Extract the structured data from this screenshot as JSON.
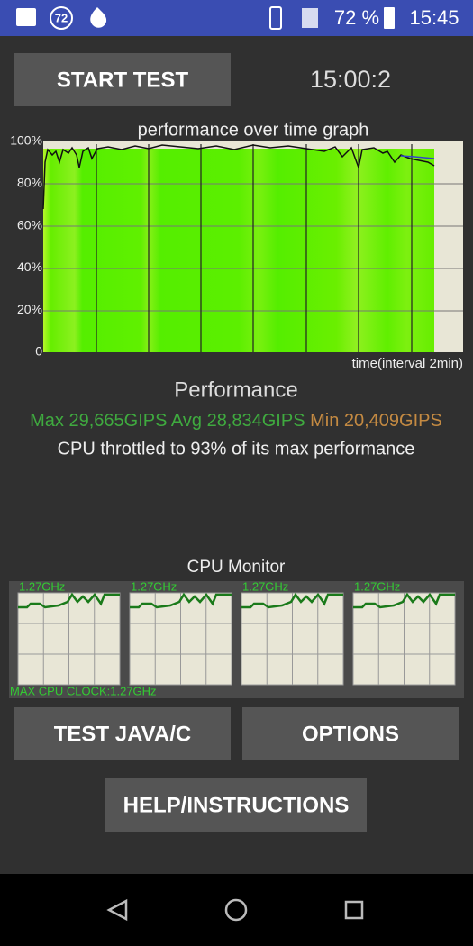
{
  "status_bar": {
    "notification_badge": "72",
    "battery": "72 %",
    "time": "15:45"
  },
  "start_button": "START TEST",
  "timer": "15:00:2",
  "graph": {
    "title": "performance over time graph",
    "y_labels": [
      "100%",
      "80%",
      "60%",
      "40%",
      "20%",
      "0"
    ],
    "x_label": "time(interval 2min)"
  },
  "performance": {
    "heading": "Performance",
    "max": "Max 29,665GIPS",
    "avg": "Avg 28,834GIPS",
    "min": "Min 20,409GIPS",
    "throttle": "CPU throttled to 93% of its max performance"
  },
  "cpu_monitor": {
    "title": "CPU Monitor",
    "cores": [
      "1.27GHz",
      "1.27GHz",
      "1.27GHz",
      "1.27GHz"
    ],
    "max_clock": "MAX CPU CLOCK:1.27GHz"
  },
  "buttons": {
    "test": "TEST JAVA/C",
    "options": "OPTIONS",
    "help": "HELP/INSTRUCTIONS"
  }
}
